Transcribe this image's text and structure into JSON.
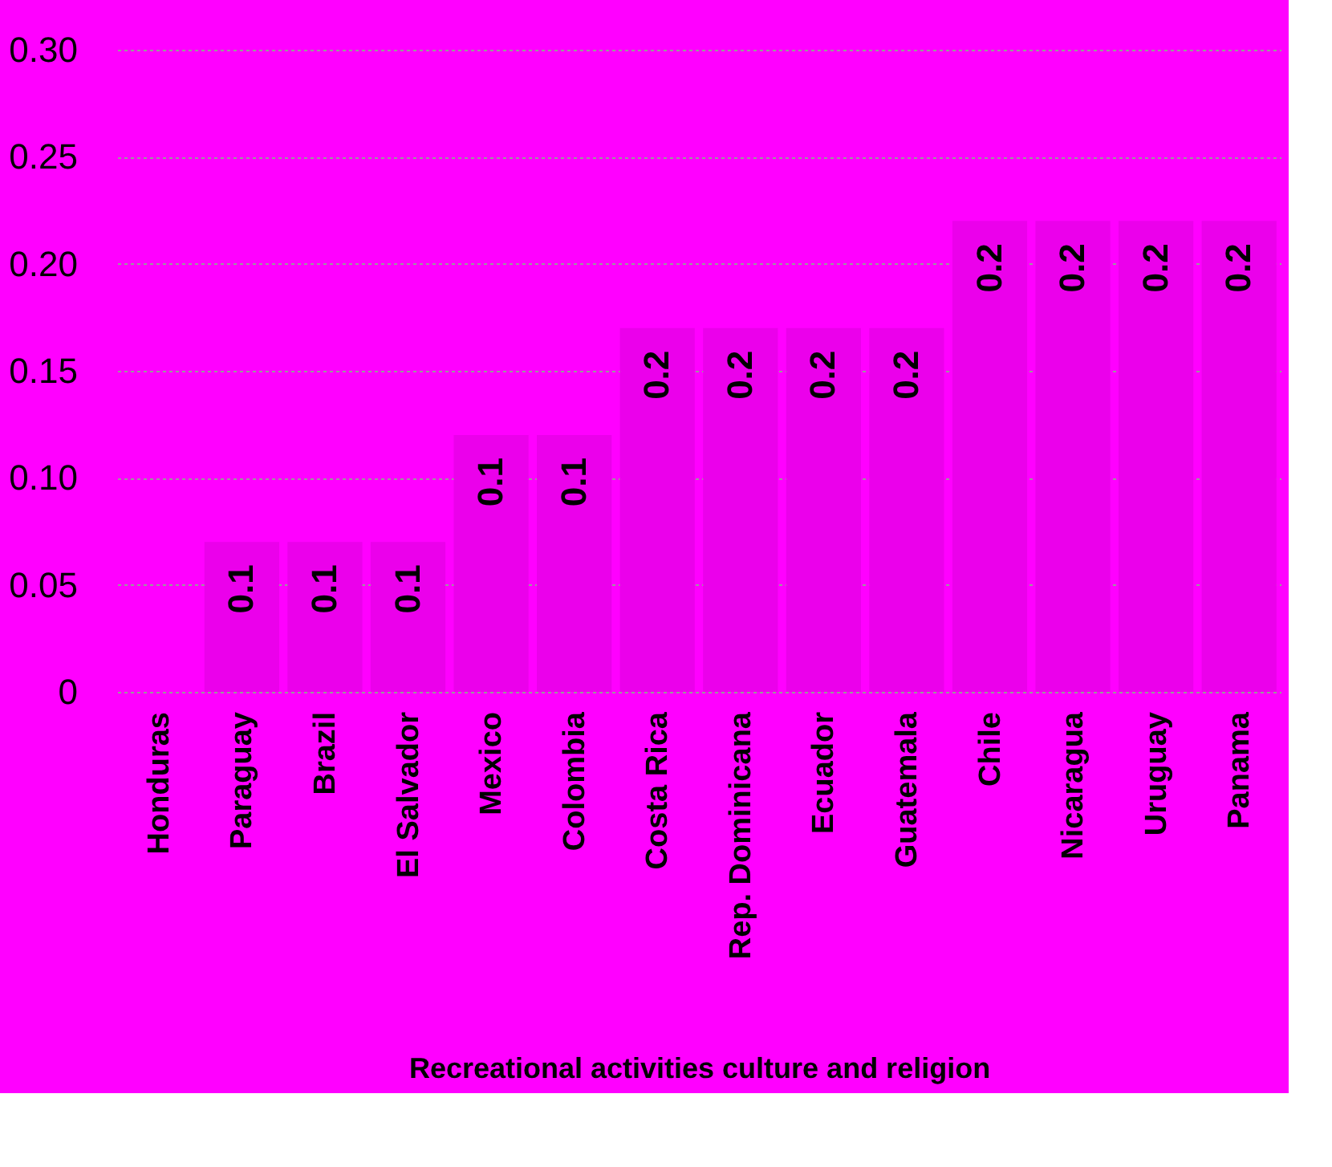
{
  "chart_data": {
    "type": "bar",
    "xlabel": "Recreational activities culture and religion",
    "categories": [
      "Honduras",
      "Paraguay",
      "Brazil",
      "El Salvador",
      "Mexico",
      "Colombia",
      "Costa Rica",
      "Rep. Dominicana",
      "Ecuador",
      "Guatemala",
      "Chile",
      "Nicaragua",
      "Uruguay",
      "Panama"
    ],
    "values": [
      0,
      0.07,
      0.07,
      0.07,
      0.12,
      0.12,
      0.17,
      0.17,
      0.17,
      0.17,
      0.22,
      0.22,
      0.22,
      0.22
    ],
    "value_labels": [
      null,
      "0.1",
      "0.1",
      "0.1",
      "0.1",
      "0.1",
      "0.2",
      "0.2",
      "0.2",
      "0.2",
      "0.2",
      "0.2",
      "0.2",
      "0.2"
    ],
    "color": "#eb00eb",
    "ylim": [
      0,
      0.3
    ],
    "yticks": [
      {
        "value": 0,
        "label": "0"
      },
      {
        "value": 0.05,
        "label": "0.05"
      },
      {
        "value": 0.1,
        "label": "0.10"
      },
      {
        "value": 0.15,
        "label": "0.15"
      },
      {
        "value": 0.2,
        "label": "0.20"
      },
      {
        "value": 0.25,
        "label": "0.25"
      },
      {
        "value": 0.3,
        "label": "0.30"
      }
    ],
    "grid": "y"
  }
}
